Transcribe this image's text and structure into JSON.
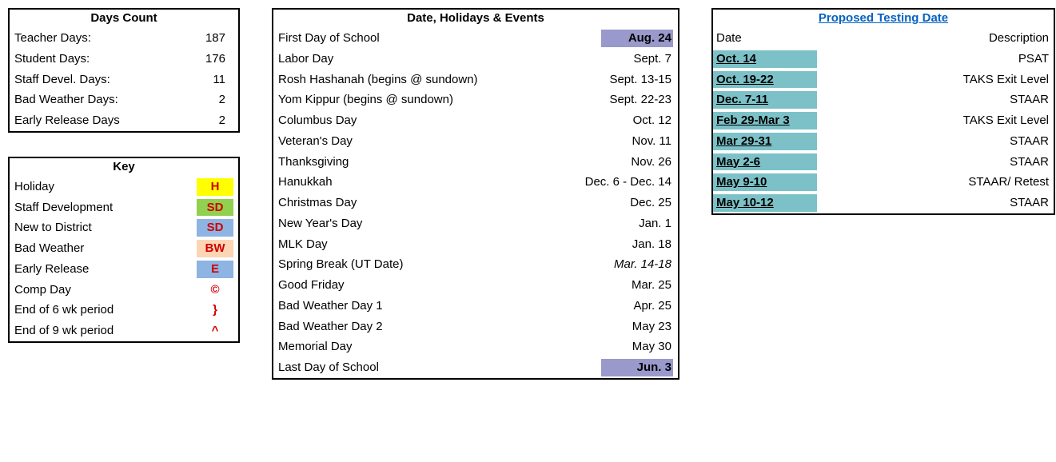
{
  "daysCount": {
    "title": "Days Count",
    "rows": [
      {
        "label": "Teacher Days:",
        "value": "187"
      },
      {
        "label": "Student Days:",
        "value": "176"
      },
      {
        "label": "Staff Devel. Days:",
        "value": "11"
      },
      {
        "label": "Bad Weather Days:",
        "value": "2"
      },
      {
        "label": "Early Release Days",
        "value": "2"
      }
    ]
  },
  "key": {
    "title": "Key",
    "rows": [
      {
        "label": "Holiday",
        "code": "H",
        "bg": "#ffff00"
      },
      {
        "label": "Staff Development",
        "code": "SD",
        "bg": "#92d050"
      },
      {
        "label": "New to District",
        "code": "SD",
        "bg": "#8db4e2"
      },
      {
        "label": "Bad Weather",
        "code": "BW",
        "bg": "#fcd5b4"
      },
      {
        "label": "Early Release",
        "code": "E",
        "bg": "#8db4e2"
      },
      {
        "label": "Comp Day",
        "code": "©",
        "bg": ""
      },
      {
        "label": "End of 6 wk period",
        "code": "}",
        "bg": ""
      },
      {
        "label": "End of 9 wk period",
        "code": "^",
        "bg": ""
      }
    ]
  },
  "events": {
    "title": "Date, Holidays & Events",
    "rows": [
      {
        "label": "First Day of School",
        "date": "Aug. 24",
        "bold": true,
        "bg": "#9999cc",
        "italic": false
      },
      {
        "label": "Labor Day",
        "date": "Sept. 7",
        "bold": false,
        "bg": "",
        "italic": false
      },
      {
        "label": "Rosh Hashanah (begins @ sundown)",
        "date": "Sept. 13-15",
        "bold": false,
        "bg": "",
        "italic": false
      },
      {
        "label": "Yom Kippur (begins @ sundown)",
        "date": "Sept. 22-23",
        "bold": false,
        "bg": "",
        "italic": false
      },
      {
        "label": "Columbus Day",
        "date": "Oct. 12",
        "bold": false,
        "bg": "",
        "italic": false
      },
      {
        "label": "Veteran's Day",
        "date": "Nov. 11",
        "bold": false,
        "bg": "",
        "italic": false
      },
      {
        "label": "Thanksgiving",
        "date": "Nov. 26",
        "bold": false,
        "bg": "",
        "italic": false
      },
      {
        "label": "Hanukkah",
        "date": "Dec. 6 - Dec. 14",
        "bold": false,
        "bg": "",
        "italic": false
      },
      {
        "label": "Christmas Day",
        "date": "Dec. 25",
        "bold": false,
        "bg": "",
        "italic": false
      },
      {
        "label": "New Year's Day",
        "date": "Jan. 1",
        "bold": false,
        "bg": "",
        "italic": false
      },
      {
        "label": "MLK Day",
        "date": "Jan. 18",
        "bold": false,
        "bg": "",
        "italic": false
      },
      {
        "label": "Spring Break (UT Date)",
        "date": "Mar. 14-18",
        "bold": false,
        "bg": "",
        "italic": true
      },
      {
        "label": "Good Friday",
        "date": "Mar. 25",
        "bold": false,
        "bg": "",
        "italic": false
      },
      {
        "label": "Bad Weather Day 1",
        "date": "Apr. 25",
        "bold": false,
        "bg": "",
        "italic": false
      },
      {
        "label": "Bad Weather Day 2",
        "date": "May 23",
        "bold": false,
        "bg": "",
        "italic": false
      },
      {
        "label": "Memorial Day",
        "date": "May 30",
        "bold": false,
        "bg": "",
        "italic": false
      },
      {
        "label": "Last Day of School",
        "date": "Jun. 3",
        "bold": true,
        "bg": "#9999cc",
        "italic": false
      }
    ]
  },
  "testing": {
    "title": "Proposed Testing Date",
    "header": {
      "date": "Date",
      "desc": "Description"
    },
    "rows": [
      {
        "date": "Oct. 14",
        "desc": "PSAT"
      },
      {
        "date": "Oct. 19-22",
        "desc": "TAKS Exit Level"
      },
      {
        "date": "Dec. 7-11",
        "desc": "STAAR"
      },
      {
        "date": "Feb 29-Mar 3",
        "desc": "TAKS Exit Level"
      },
      {
        "date": "Mar 29-31",
        "desc": "STAAR"
      },
      {
        "date": "May 2-6",
        "desc": "STAAR"
      },
      {
        "date": "May 9-10",
        "desc": "STAAR/ Retest"
      },
      {
        "date": "May 10-12",
        "desc": "STAAR"
      }
    ]
  }
}
